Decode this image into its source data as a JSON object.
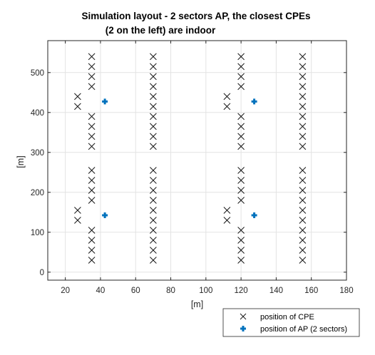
{
  "chart_data": {
    "type": "scatter",
    "title_lines": [
      "Simulation layout - 2 sectors AP, the closest CPEs",
      "(2 on the left) are indoor"
    ],
    "xlabel": "[m]",
    "ylabel": "[m]",
    "xlim": [
      10,
      180
    ],
    "ylim": [
      -20,
      580
    ],
    "xticks": [
      20,
      40,
      60,
      80,
      100,
      120,
      140,
      160,
      180
    ],
    "yticks": [
      0,
      100,
      200,
      300,
      400,
      500
    ],
    "grid": true,
    "legend_position": "bottom-right-outside",
    "colors": {
      "cpe": "#1a1a1a",
      "ap": "#0072BD",
      "grid": "#e3e3e3",
      "axis": "#262626"
    },
    "series": [
      {
        "name": "position of CPE",
        "marker": "x",
        "points": [
          [
            35,
            540
          ],
          [
            35,
            515
          ],
          [
            35,
            490
          ],
          [
            35,
            465
          ],
          [
            35,
            390
          ],
          [
            35,
            365
          ],
          [
            35,
            340
          ],
          [
            35,
            315
          ],
          [
            35,
            255
          ],
          [
            35,
            230
          ],
          [
            35,
            205
          ],
          [
            35,
            180
          ],
          [
            35,
            105
          ],
          [
            35,
            80
          ],
          [
            35,
            55
          ],
          [
            35,
            30
          ],
          [
            27,
            440
          ],
          [
            27,
            415
          ],
          [
            27,
            155
          ],
          [
            27,
            130
          ],
          [
            70,
            540
          ],
          [
            70,
            515
          ],
          [
            70,
            490
          ],
          [
            70,
            465
          ],
          [
            70,
            440
          ],
          [
            70,
            415
          ],
          [
            70,
            390
          ],
          [
            70,
            365
          ],
          [
            70,
            340
          ],
          [
            70,
            315
          ],
          [
            70,
            255
          ],
          [
            70,
            230
          ],
          [
            70,
            205
          ],
          [
            70,
            180
          ],
          [
            70,
            155
          ],
          [
            70,
            130
          ],
          [
            70,
            105
          ],
          [
            70,
            80
          ],
          [
            70,
            55
          ],
          [
            70,
            30
          ],
          [
            120,
            540
          ],
          [
            120,
            515
          ],
          [
            120,
            490
          ],
          [
            120,
            465
          ],
          [
            120,
            390
          ],
          [
            120,
            365
          ],
          [
            120,
            340
          ],
          [
            120,
            315
          ],
          [
            120,
            255
          ],
          [
            120,
            230
          ],
          [
            120,
            205
          ],
          [
            120,
            180
          ],
          [
            120,
            105
          ],
          [
            120,
            80
          ],
          [
            120,
            55
          ],
          [
            120,
            30
          ],
          [
            112,
            440
          ],
          [
            112,
            415
          ],
          [
            112,
            155
          ],
          [
            112,
            130
          ],
          [
            155,
            540
          ],
          [
            155,
            515
          ],
          [
            155,
            490
          ],
          [
            155,
            465
          ],
          [
            155,
            440
          ],
          [
            155,
            415
          ],
          [
            155,
            390
          ],
          [
            155,
            365
          ],
          [
            155,
            340
          ],
          [
            155,
            315
          ],
          [
            155,
            255
          ],
          [
            155,
            230
          ],
          [
            155,
            205
          ],
          [
            155,
            180
          ],
          [
            155,
            155
          ],
          [
            155,
            130
          ],
          [
            155,
            105
          ],
          [
            155,
            80
          ],
          [
            155,
            55
          ],
          [
            155,
            30
          ]
        ]
      },
      {
        "name": "position of AP (2 sectors)",
        "marker": "plus",
        "points": [
          [
            42.5,
            427.5
          ],
          [
            127.5,
            427.5
          ],
          [
            42.5,
            142.5
          ],
          [
            127.5,
            142.5
          ]
        ]
      }
    ]
  }
}
